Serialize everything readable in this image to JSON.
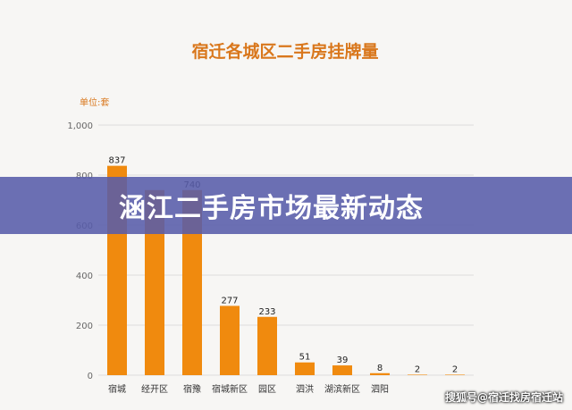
{
  "chart_data": {
    "type": "bar",
    "title": "宿迁各城区二手房挂牌量",
    "unit_label": "单位:套",
    "categories": [
      "宿城",
      "经开区",
      "宿豫",
      "宿城新区",
      "园区",
      "泗洪",
      "湖滨新区",
      "泗阳",
      "",
      ""
    ],
    "values": [
      837,
      740,
      740,
      277,
      233,
      51,
      39,
      8,
      2,
      2
    ],
    "value_labels": [
      "837",
      "",
      "740",
      "277",
      "233",
      "51",
      "39",
      "8",
      "2",
      "2"
    ],
    "y_ticks": [
      "0",
      "200",
      "400",
      "600",
      "800",
      "1,000"
    ],
    "ylim": [
      0,
      1000
    ],
    "grid": true,
    "bar_color": "#f08a0e"
  },
  "banner": {
    "text": "涵江二手房市场最新动态"
  },
  "footer": {
    "text": "搜狐号@宿迁找房宿迁站"
  }
}
